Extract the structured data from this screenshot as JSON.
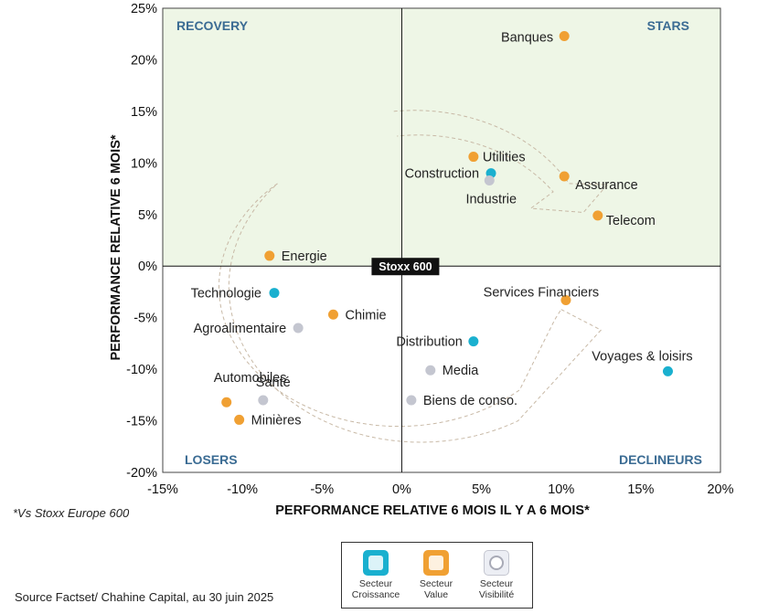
{
  "chart_data": {
    "type": "scatter",
    "title": "",
    "xlabel": "PERFORMANCE RELATIVE 6 MOIS IL Y A 6 MOIS*",
    "ylabel": "PERFORMANCE RELATIVE 6 MOIS*",
    "xlim": [
      -15,
      20
    ],
    "ylim": [
      -20,
      25
    ],
    "x_ticks": [
      -15,
      -10,
      -5,
      0,
      5,
      10,
      15,
      20
    ],
    "x_tick_labels": [
      "-15%",
      "-10%",
      "-5%",
      "0%",
      "5%",
      "10%",
      "15%",
      "20%"
    ],
    "y_ticks": [
      -20,
      -15,
      -10,
      -5,
      0,
      5,
      10,
      15,
      20,
      25
    ],
    "y_tick_labels": [
      "-20%",
      "-15%",
      "-10%",
      "-5%",
      "0%",
      "5%",
      "10%",
      "15%",
      "20%",
      "25%"
    ],
    "center_label": "Stoxx 600",
    "quadrants": {
      "top_left": "RECOVERY",
      "top_right": "STARS",
      "bottom_left": "LOSERS",
      "bottom_right": "DECLINEURS"
    },
    "colors": {
      "croissance": "#1ab0cf",
      "value": "#f0a033",
      "visibilite": "#c4c6d0",
      "top_fill": "#eef6e6"
    },
    "points": [
      {
        "name": "Banques",
        "x": 10.2,
        "y": 22.3,
        "category": "value"
      },
      {
        "name": "Utilities",
        "x": 4.5,
        "y": 10.6,
        "category": "value"
      },
      {
        "name": "Construction",
        "x": 5.6,
        "y": 9.0,
        "category": "croissance"
      },
      {
        "name": "Industrie",
        "x": 5.5,
        "y": 8.3,
        "category": "visibilite"
      },
      {
        "name": "Assurance",
        "x": 10.2,
        "y": 8.7,
        "category": "value"
      },
      {
        "name": "Telecom",
        "x": 12.3,
        "y": 4.9,
        "category": "value"
      },
      {
        "name": "Energie",
        "x": -8.3,
        "y": 1.0,
        "category": "value"
      },
      {
        "name": "Technologie",
        "x": -8.0,
        "y": -2.6,
        "category": "croissance"
      },
      {
        "name": "Chimie",
        "x": -4.3,
        "y": -4.7,
        "category": "value"
      },
      {
        "name": "Agroalimentaire",
        "x": -6.5,
        "y": -6.0,
        "category": "visibilite"
      },
      {
        "name": "Services Financiers",
        "x": 10.3,
        "y": -3.3,
        "category": "value"
      },
      {
        "name": "Distribution",
        "x": 4.5,
        "y": -7.3,
        "category": "croissance"
      },
      {
        "name": "Media",
        "x": 1.8,
        "y": -10.1,
        "category": "visibilite"
      },
      {
        "name": "Voyages & loisirs",
        "x": 16.7,
        "y": -10.2,
        "category": "croissance"
      },
      {
        "name": "Santé",
        "x": -8.7,
        "y": -13.0,
        "category": "visibilite"
      },
      {
        "name": "Automobiles",
        "x": -11.0,
        "y": -13.2,
        "category": "value"
      },
      {
        "name": "Minières",
        "x": -10.2,
        "y": -14.9,
        "category": "value"
      },
      {
        "name": "Biens de conso.",
        "x": 0.6,
        "y": -13.0,
        "category": "visibilite"
      }
    ]
  },
  "footnote": "*Vs Stoxx Europe 600",
  "source": "Source Factset/ Chahine Capital, au 30 juin 2025",
  "legend": {
    "items": [
      {
        "key": "croissance",
        "line1": "Secteur",
        "line2": "Croissance",
        "icon": "growth-chart-icon"
      },
      {
        "key": "value",
        "line1": "Secteur",
        "line2": "Value",
        "icon": "coin-stack-icon"
      },
      {
        "key": "visibilite",
        "line1": "Secteur",
        "line2": "Visibilité",
        "icon": "magnifier-icon"
      }
    ]
  }
}
